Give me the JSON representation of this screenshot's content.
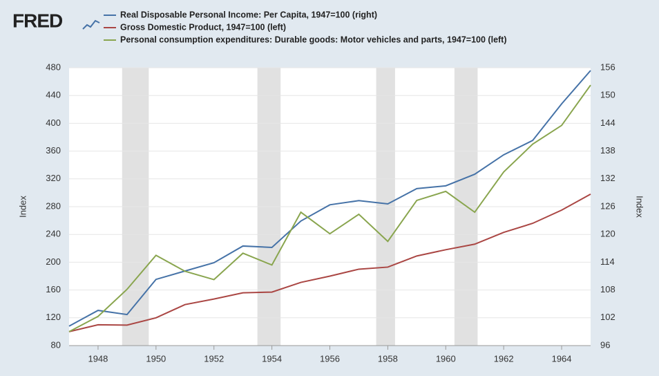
{
  "chart_data": {
    "type": "line",
    "logo": "FRED",
    "x": [
      1947,
      1948,
      1949,
      1950,
      1951,
      1952,
      1953,
      1954,
      1955,
      1956,
      1957,
      1958,
      1959,
      1960,
      1961,
      1962,
      1963,
      1964,
      1965
    ],
    "xlim": [
      1947,
      1965
    ],
    "xticks": [
      1948,
      1950,
      1952,
      1954,
      1956,
      1958,
      1960,
      1962,
      1964
    ],
    "ylim": [
      80,
      480
    ],
    "yticks": [
      80,
      120,
      160,
      200,
      240,
      280,
      320,
      360,
      400,
      440,
      480
    ],
    "y2lim": [
      96,
      156
    ],
    "y2ticks": [
      96,
      102,
      108,
      114,
      120,
      126,
      132,
      138,
      144,
      150,
      156
    ],
    "ylabel": "Index",
    "y2label": "Index",
    "grid": true,
    "recessions": [
      [
        1948.83,
        1949.75
      ],
      [
        1953.5,
        1954.3
      ],
      [
        1957.6,
        1958.25
      ],
      [
        1960.3,
        1961.1
      ]
    ],
    "series": [
      {
        "name": "Real Disposable Personal Income: Per Capita, 1947=100 (right)",
        "color": "#4572a7",
        "axis": "y2",
        "values": [
          100.2,
          103.6,
          102.7,
          110.3,
          112.1,
          113.9,
          117.5,
          117.2,
          122.9,
          126.4,
          127.3,
          126.6,
          129.9,
          130.5,
          133,
          137.2,
          140.3,
          148.2,
          155.4
        ]
      },
      {
        "name": "Gross Domestic Product, 1947=100 (left)",
        "color": "#aa4643",
        "values": [
          100,
          110,
          109.5,
          120,
          139,
          147,
          156,
          157,
          171,
          180,
          190,
          193,
          209,
          218,
          226,
          243,
          256,
          275,
          298
        ]
      },
      {
        "name": "Personal consumption expenditures: Durable goods: Motor vehicles and parts, 1947=100 (left)",
        "color": "#89a54e",
        "values": [
          100,
          122,
          161,
          210,
          187,
          175,
          213,
          196,
          272,
          241,
          269,
          230,
          289,
          302,
          272,
          330,
          370,
          397,
          455
        ]
      }
    ]
  }
}
